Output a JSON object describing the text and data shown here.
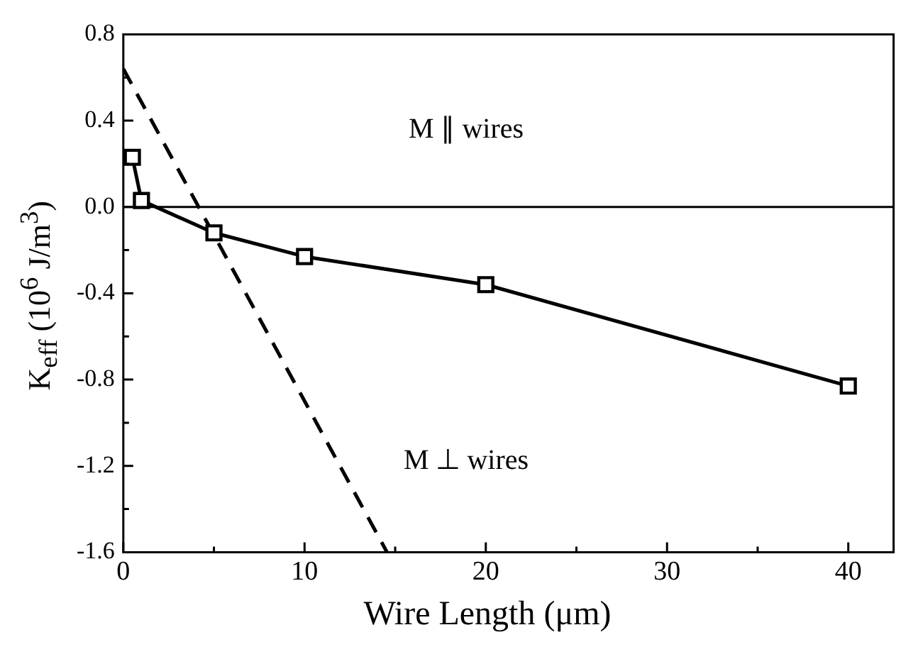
{
  "chart_data": {
    "type": "line",
    "xlabel": "Wire Length (μm)",
    "ylabel": "K$_{eff}$ (10$^{6}$ J/m$^{3}$)",
    "xlim": [
      0,
      42.5
    ],
    "xticks": [
      0,
      10,
      20,
      30,
      40
    ],
    "ylim": [
      -1.6,
      0.8
    ],
    "yticks": [
      {
        "value": -1.6,
        "label": "-1.6"
      },
      {
        "value": -1.2,
        "label": "-1.2"
      },
      {
        "value": -0.8,
        "label": "-0.8"
      },
      {
        "value": -0.4,
        "label": "-0.4"
      },
      {
        "value": 0,
        "label": "0.0"
      },
      {
        "value": 0.4,
        "label": "0.4"
      },
      {
        "value": 0.8,
        "label": "0.8"
      }
    ],
    "series": [
      {
        "color": "#000000",
        "marker": "square",
        "line_style": "solid",
        "x": [
          0.5,
          1,
          5,
          10,
          20,
          40
        ],
        "values": [
          0.23,
          0.03,
          -0.12,
          -0.23,
          -0.36,
          -0.83
        ]
      },
      {
        "color": "#000000",
        "marker": "none",
        "line_style": "dashed",
        "x": [
          0,
          14.55
        ],
        "values": [
          0.64,
          -1.6
        ]
      }
    ],
    "ref_lines": [
      {
        "axis": "y",
        "value": 0,
        "color": "#000000",
        "line_style": "solid"
      }
    ],
    "annotations": [
      "M ∥ wires",
      "M ⊥ wires"
    ],
    "grid": false,
    "legend": false
  }
}
